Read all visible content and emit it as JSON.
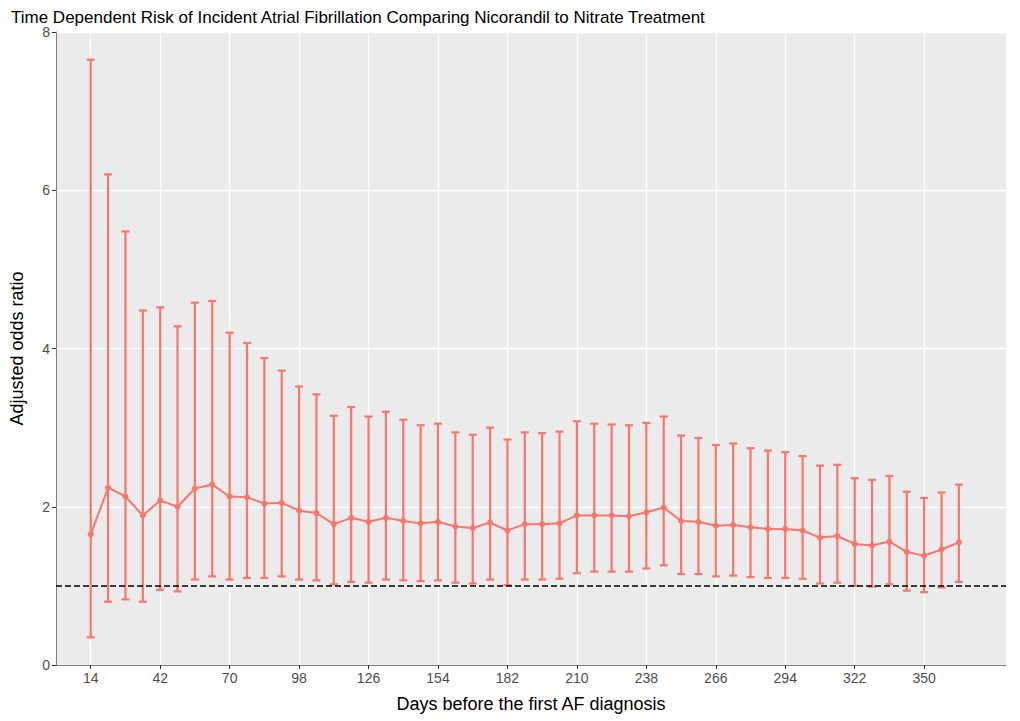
{
  "chart_data": {
    "type": "line",
    "title": "Time Dependent Risk of Incident Atrial Fibrillation Comparing Nicorandil to Nitrate Treatment",
    "x_label": "Days before the first AF diagnosis",
    "y_label": "Adjusted odds ratio",
    "x": [
      14,
      21,
      28,
      35,
      42,
      49,
      56,
      63,
      70,
      77,
      84,
      91,
      98,
      105,
      112,
      119,
      126,
      133,
      140,
      147,
      154,
      161,
      168,
      175,
      182,
      189,
      196,
      203,
      210,
      217,
      224,
      231,
      238,
      245,
      252,
      259,
      266,
      273,
      280,
      287,
      294,
      301,
      308,
      315,
      322,
      329,
      336,
      343,
      350,
      357,
      364
    ],
    "values": [
      1.65,
      2.24,
      2.13,
      1.89,
      2.08,
      2.0,
      2.23,
      2.28,
      2.13,
      2.12,
      2.04,
      2.05,
      1.95,
      1.92,
      1.78,
      1.86,
      1.81,
      1.86,
      1.82,
      1.79,
      1.81,
      1.75,
      1.73,
      1.8,
      1.7,
      1.78,
      1.78,
      1.79,
      1.89,
      1.89,
      1.89,
      1.88,
      1.93,
      1.99,
      1.82,
      1.81,
      1.76,
      1.77,
      1.74,
      1.72,
      1.72,
      1.7,
      1.61,
      1.63,
      1.53,
      1.51,
      1.56,
      1.43,
      1.38,
      1.46,
      1.55
    ],
    "lower": [
      0.35,
      0.8,
      0.83,
      0.8,
      0.95,
      0.93,
      1.08,
      1.12,
      1.08,
      1.1,
      1.1,
      1.12,
      1.08,
      1.07,
      1.02,
      1.05,
      1.04,
      1.08,
      1.07,
      1.06,
      1.07,
      1.04,
      1.03,
      1.08,
      1.01,
      1.08,
      1.08,
      1.09,
      1.16,
      1.18,
      1.18,
      1.18,
      1.22,
      1.26,
      1.15,
      1.15,
      1.12,
      1.13,
      1.11,
      1.1,
      1.1,
      1.09,
      1.03,
      1.04,
      1.0,
      0.99,
      1.02,
      0.94,
      0.92,
      0.98,
      1.05
    ],
    "upper": [
      7.65,
      6.2,
      5.48,
      4.48,
      4.52,
      4.28,
      4.58,
      4.6,
      4.2,
      4.07,
      3.88,
      3.72,
      3.52,
      3.42,
      3.15,
      3.26,
      3.14,
      3.2,
      3.1,
      3.03,
      3.05,
      2.94,
      2.91,
      3.0,
      2.85,
      2.94,
      2.93,
      2.95,
      3.08,
      3.05,
      3.04,
      3.03,
      3.06,
      3.14,
      2.9,
      2.87,
      2.78,
      2.8,
      2.74,
      2.71,
      2.69,
      2.64,
      2.52,
      2.53,
      2.36,
      2.34,
      2.39,
      2.19,
      2.11,
      2.18,
      2.28
    ],
    "color": "#F8766D",
    "marker": "circle",
    "reference_line": 1,
    "xlim": [
      0,
      383
    ],
    "ylim": [
      0,
      8
    ],
    "xticks": [
      14,
      42,
      70,
      98,
      126,
      154,
      182,
      210,
      238,
      266,
      294,
      322,
      350
    ],
    "yticks": [
      0,
      2,
      4,
      6,
      8
    ],
    "grid": true
  }
}
